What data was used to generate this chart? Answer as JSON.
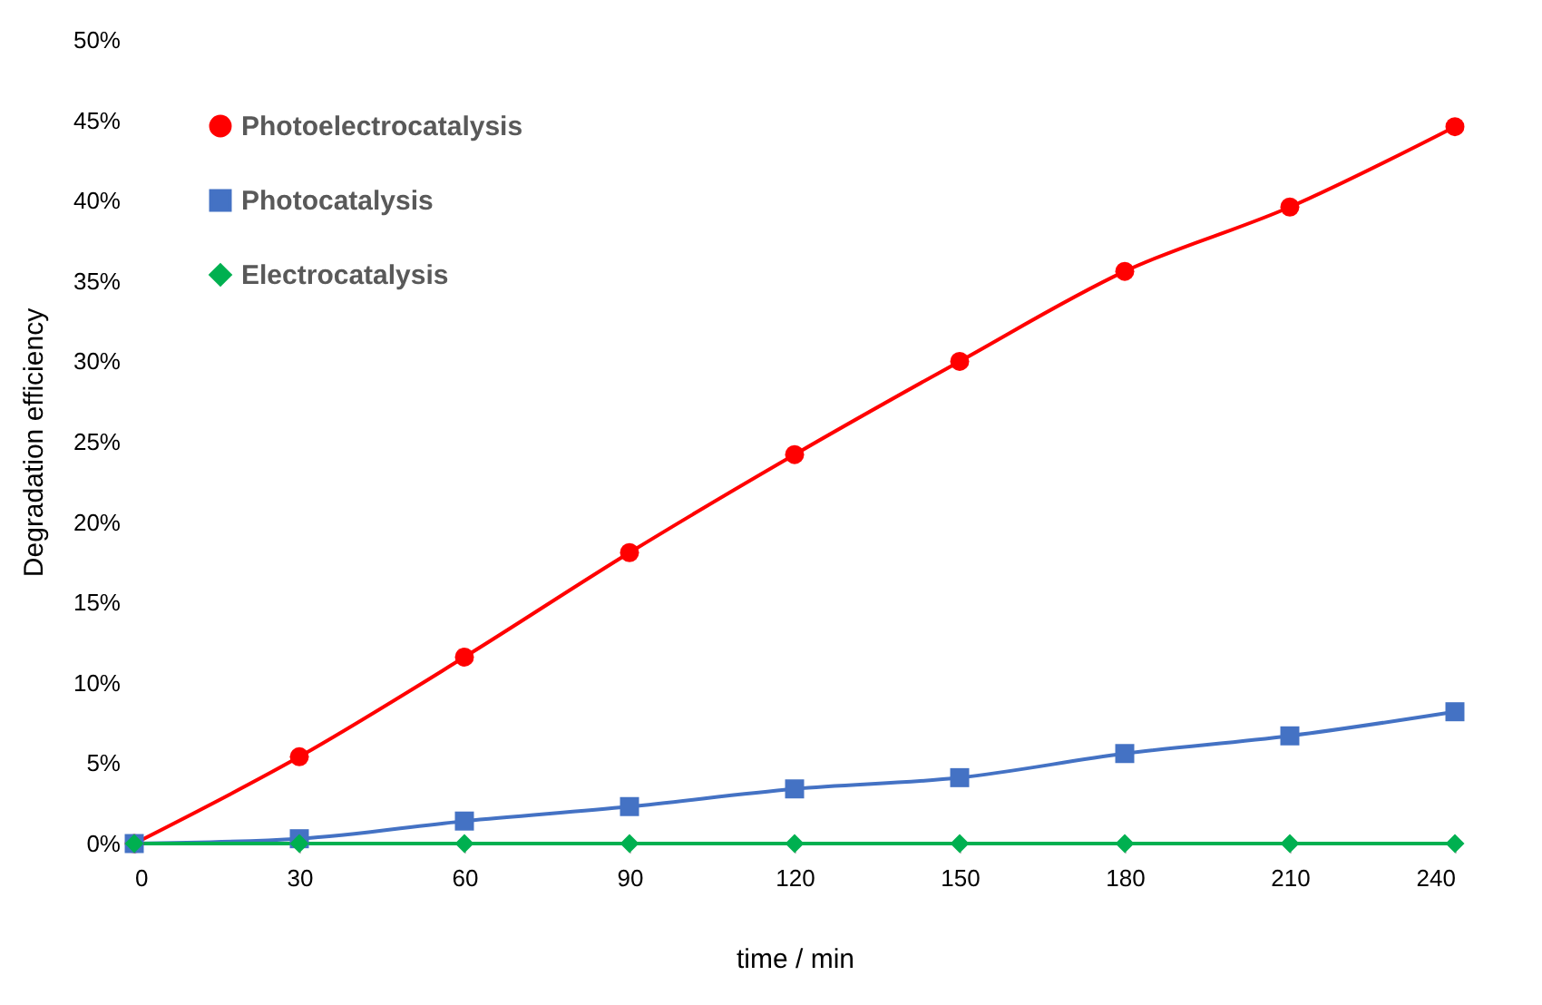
{
  "chart_data": {
    "type": "line",
    "xlabel": "time / min",
    "ylabel": "Degradation efficiency",
    "x": [
      0,
      30,
      60,
      90,
      120,
      150,
      180,
      210,
      240
    ],
    "xlim": [
      0,
      240
    ],
    "xticks": [
      0,
      30,
      60,
      90,
      120,
      150,
      180,
      210,
      240
    ],
    "ylim": [
      0,
      50
    ],
    "yticks": [
      {
        "value": 0,
        "label": "0%"
      },
      {
        "value": 5,
        "label": "5%"
      },
      {
        "value": 10,
        "label": "10%"
      },
      {
        "value": 15,
        "label": "15%"
      },
      {
        "value": 20,
        "label": "20%"
      },
      {
        "value": 25,
        "label": "25%"
      },
      {
        "value": 30,
        "label": "30%"
      },
      {
        "value": 35,
        "label": "35%"
      },
      {
        "value": 40,
        "label": "40%"
      },
      {
        "value": 45,
        "label": "45%"
      },
      {
        "value": 50,
        "label": "50%"
      }
    ],
    "legend": "top left",
    "line_style": "solid",
    "series": [
      {
        "name": "Photoelectrocatalysis",
        "color": "#ff0000",
        "marker": "circle",
        "values": [
          0,
          5.4,
          11.6,
          18.1,
          24.2,
          30.0,
          35.6,
          39.6,
          44.6
        ]
      },
      {
        "name": "Photocatalysis",
        "color": "#4472c4",
        "marker": "square",
        "values": [
          0,
          0.3,
          1.4,
          2.3,
          3.4,
          4.1,
          5.6,
          6.7,
          8.2
        ]
      },
      {
        "name": "Electrocatalysis",
        "color": "#00b050",
        "marker": "diamond",
        "values": [
          0,
          0,
          0,
          0,
          0,
          0,
          0,
          0,
          0
        ]
      }
    ]
  }
}
